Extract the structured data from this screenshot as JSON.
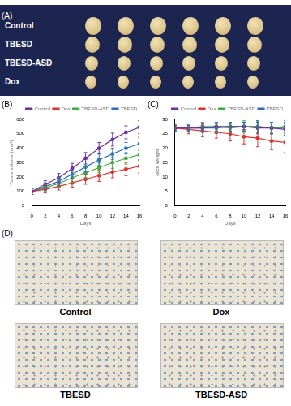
{
  "panel_a": {
    "label": "(A)",
    "rows": [
      "Control",
      "TBESD",
      "TBESD-ASD",
      "Dox"
    ]
  },
  "chart_data": [
    {
      "panel": "(B)",
      "type": "line",
      "xlabel": "Days",
      "ylabel": "Tumor volume (mm³)",
      "x": [
        0,
        2,
        4,
        6,
        8,
        10,
        12,
        14,
        16
      ],
      "xlim": [
        0,
        16
      ],
      "xticks": [
        0,
        2,
        4,
        6,
        8,
        10,
        12,
        14,
        16
      ],
      "ylim": [
        0,
        600
      ],
      "yticks": [
        0,
        100,
        200,
        300,
        400,
        500,
        600
      ],
      "grid": false,
      "legend": "top",
      "marker": "circle",
      "series": [
        {
          "name": "Control",
          "color": "#7030a0",
          "values": [
            100,
            150,
            195,
            260,
            330,
            400,
            460,
            510,
            545
          ],
          "errors": [
            20,
            25,
            30,
            35,
            40,
            40,
            45,
            45,
            45
          ]
        },
        {
          "name": "Dox",
          "color": "#e03030",
          "values": [
            100,
            115,
            135,
            160,
            185,
            210,
            235,
            255,
            275
          ],
          "errors": [
            20,
            25,
            25,
            30,
            35,
            40,
            40,
            45,
            45
          ]
        },
        {
          "name": "TBESD-ASD",
          "color": "#3cae3c",
          "values": [
            100,
            125,
            155,
            195,
            230,
            265,
            300,
            330,
            355
          ],
          "errors": [
            20,
            25,
            25,
            30,
            35,
            35,
            40,
            40,
            40
          ]
        },
        {
          "name": "TBESD",
          "color": "#2f6fc0",
          "values": [
            100,
            135,
            170,
            220,
            270,
            320,
            360,
            400,
            430
          ],
          "errors": [
            20,
            25,
            30,
            30,
            35,
            40,
            40,
            40,
            45
          ]
        }
      ]
    },
    {
      "panel": "(C)",
      "type": "line",
      "xlabel": "Days",
      "ylabel": "Mice Weight",
      "x": [
        0,
        2,
        4,
        6,
        8,
        10,
        12,
        14,
        16
      ],
      "xlim": [
        0,
        16
      ],
      "xticks": [
        0,
        2,
        4,
        6,
        8,
        10,
        12,
        14,
        16
      ],
      "ylim": [
        0,
        30
      ],
      "yticks": [
        0,
        5,
        10,
        15,
        20,
        25,
        30
      ],
      "grid": false,
      "legend": "top",
      "marker": "circle",
      "series": [
        {
          "name": "Control",
          "color": "#7030a0",
          "values": [
            27,
            27,
            27,
            27.5,
            27.5,
            27.5,
            27,
            27,
            26.5
          ],
          "errors": [
            1,
            1,
            1.5,
            1.5,
            1.5,
            1.5,
            2,
            2,
            2
          ]
        },
        {
          "name": "Dox",
          "color": "#e03030",
          "values": [
            27,
            26.5,
            26,
            25.5,
            25,
            24,
            23.5,
            22.5,
            22
          ],
          "errors": [
            1,
            1.5,
            2,
            2,
            2.5,
            2.5,
            3,
            3,
            3.5
          ]
        },
        {
          "name": "TBESD-ASD",
          "color": "#3cae3c",
          "values": [
            27,
            27,
            27.5,
            27.5,
            27,
            27.5,
            27.5,
            27,
            27
          ],
          "errors": [
            1,
            1,
            1.5,
            1.5,
            1.5,
            2,
            2,
            2,
            2
          ]
        },
        {
          "name": "TBESD",
          "color": "#2f6fc0",
          "values": [
            27,
            27,
            27,
            27,
            27.5,
            27.5,
            27.5,
            27,
            27.5
          ],
          "errors": [
            1,
            1,
            1,
            1.5,
            1.5,
            1.5,
            2,
            2,
            2
          ]
        }
      ]
    }
  ],
  "panel_d": {
    "label": "(D)",
    "images": [
      "Control",
      "Dox",
      "TBESD",
      "TBESD-ASD"
    ]
  }
}
